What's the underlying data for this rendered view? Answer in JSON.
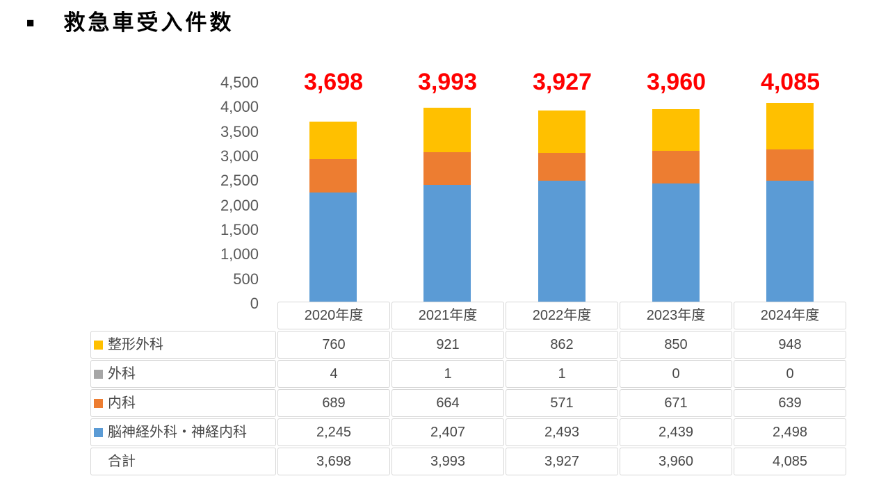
{
  "title": {
    "bullet": "■",
    "text": "救急車受入件数"
  },
  "colors": {
    "orthopedics": "#FFC000",
    "surgery": "#A6A6A6",
    "internal_medicine": "#ED7D31",
    "neurosurgery_neurology": "#5B9BD5",
    "total_label": "#FF0000",
    "axis_text": "#595959",
    "table_border": "#D6D6D6"
  },
  "chart_data": {
    "type": "bar",
    "stacked": true,
    "title": "救急車受入件数",
    "categories": [
      "2020年度",
      "2021年度",
      "2022年度",
      "2023年度",
      "2024年度"
    ],
    "series": [
      {
        "name": "整形外科",
        "color": "#FFC000",
        "values": [
          760,
          921,
          862,
          850,
          948
        ]
      },
      {
        "name": "外科",
        "color": "#A6A6A6",
        "values": [
          4,
          1,
          1,
          0,
          0
        ]
      },
      {
        "name": "内科",
        "color": "#ED7D31",
        "values": [
          689,
          664,
          571,
          671,
          639
        ]
      },
      {
        "name": "脳神経外科・神経内科",
        "color": "#5B9BD5",
        "values": [
          2245,
          2407,
          2493,
          2439,
          2498
        ]
      }
    ],
    "totals": [
      3698,
      3993,
      3927,
      3960,
      4085
    ],
    "totals_labels": [
      "3,698",
      "3,993",
      "3,927",
      "3,960",
      "4,085"
    ],
    "xlabel": "",
    "ylabel": "",
    "ylim": [
      0,
      4500
    ],
    "y_tick_step": 500,
    "y_ticks": [
      "4,500",
      "4,000",
      "3,500",
      "3,000",
      "2,500",
      "2,000",
      "1,500",
      "1,000",
      "500",
      "0"
    ],
    "grid": false,
    "legend_position": "table-rows"
  },
  "table": {
    "header": [
      "2020年度",
      "2021年度",
      "2022年度",
      "2023年度",
      "2024年度"
    ],
    "rows": [
      {
        "label": "整形外科",
        "swatch": "#FFC000",
        "values": [
          "760",
          "921",
          "862",
          "850",
          "948"
        ]
      },
      {
        "label": "外科",
        "swatch": "#A6A6A6",
        "values": [
          "4",
          "1",
          "1",
          "0",
          "0"
        ]
      },
      {
        "label": "内科",
        "swatch": "#ED7D31",
        "values": [
          "689",
          "664",
          "571",
          "671",
          "639"
        ]
      },
      {
        "label": "脳神経外科・神経内科",
        "swatch": "#5B9BD5",
        "values": [
          "2,245",
          "2,407",
          "2,493",
          "2,439",
          "2,498"
        ]
      },
      {
        "label": "合計",
        "swatch": null,
        "values": [
          "3,698",
          "3,993",
          "3,927",
          "3,960",
          "4,085"
        ]
      }
    ]
  }
}
